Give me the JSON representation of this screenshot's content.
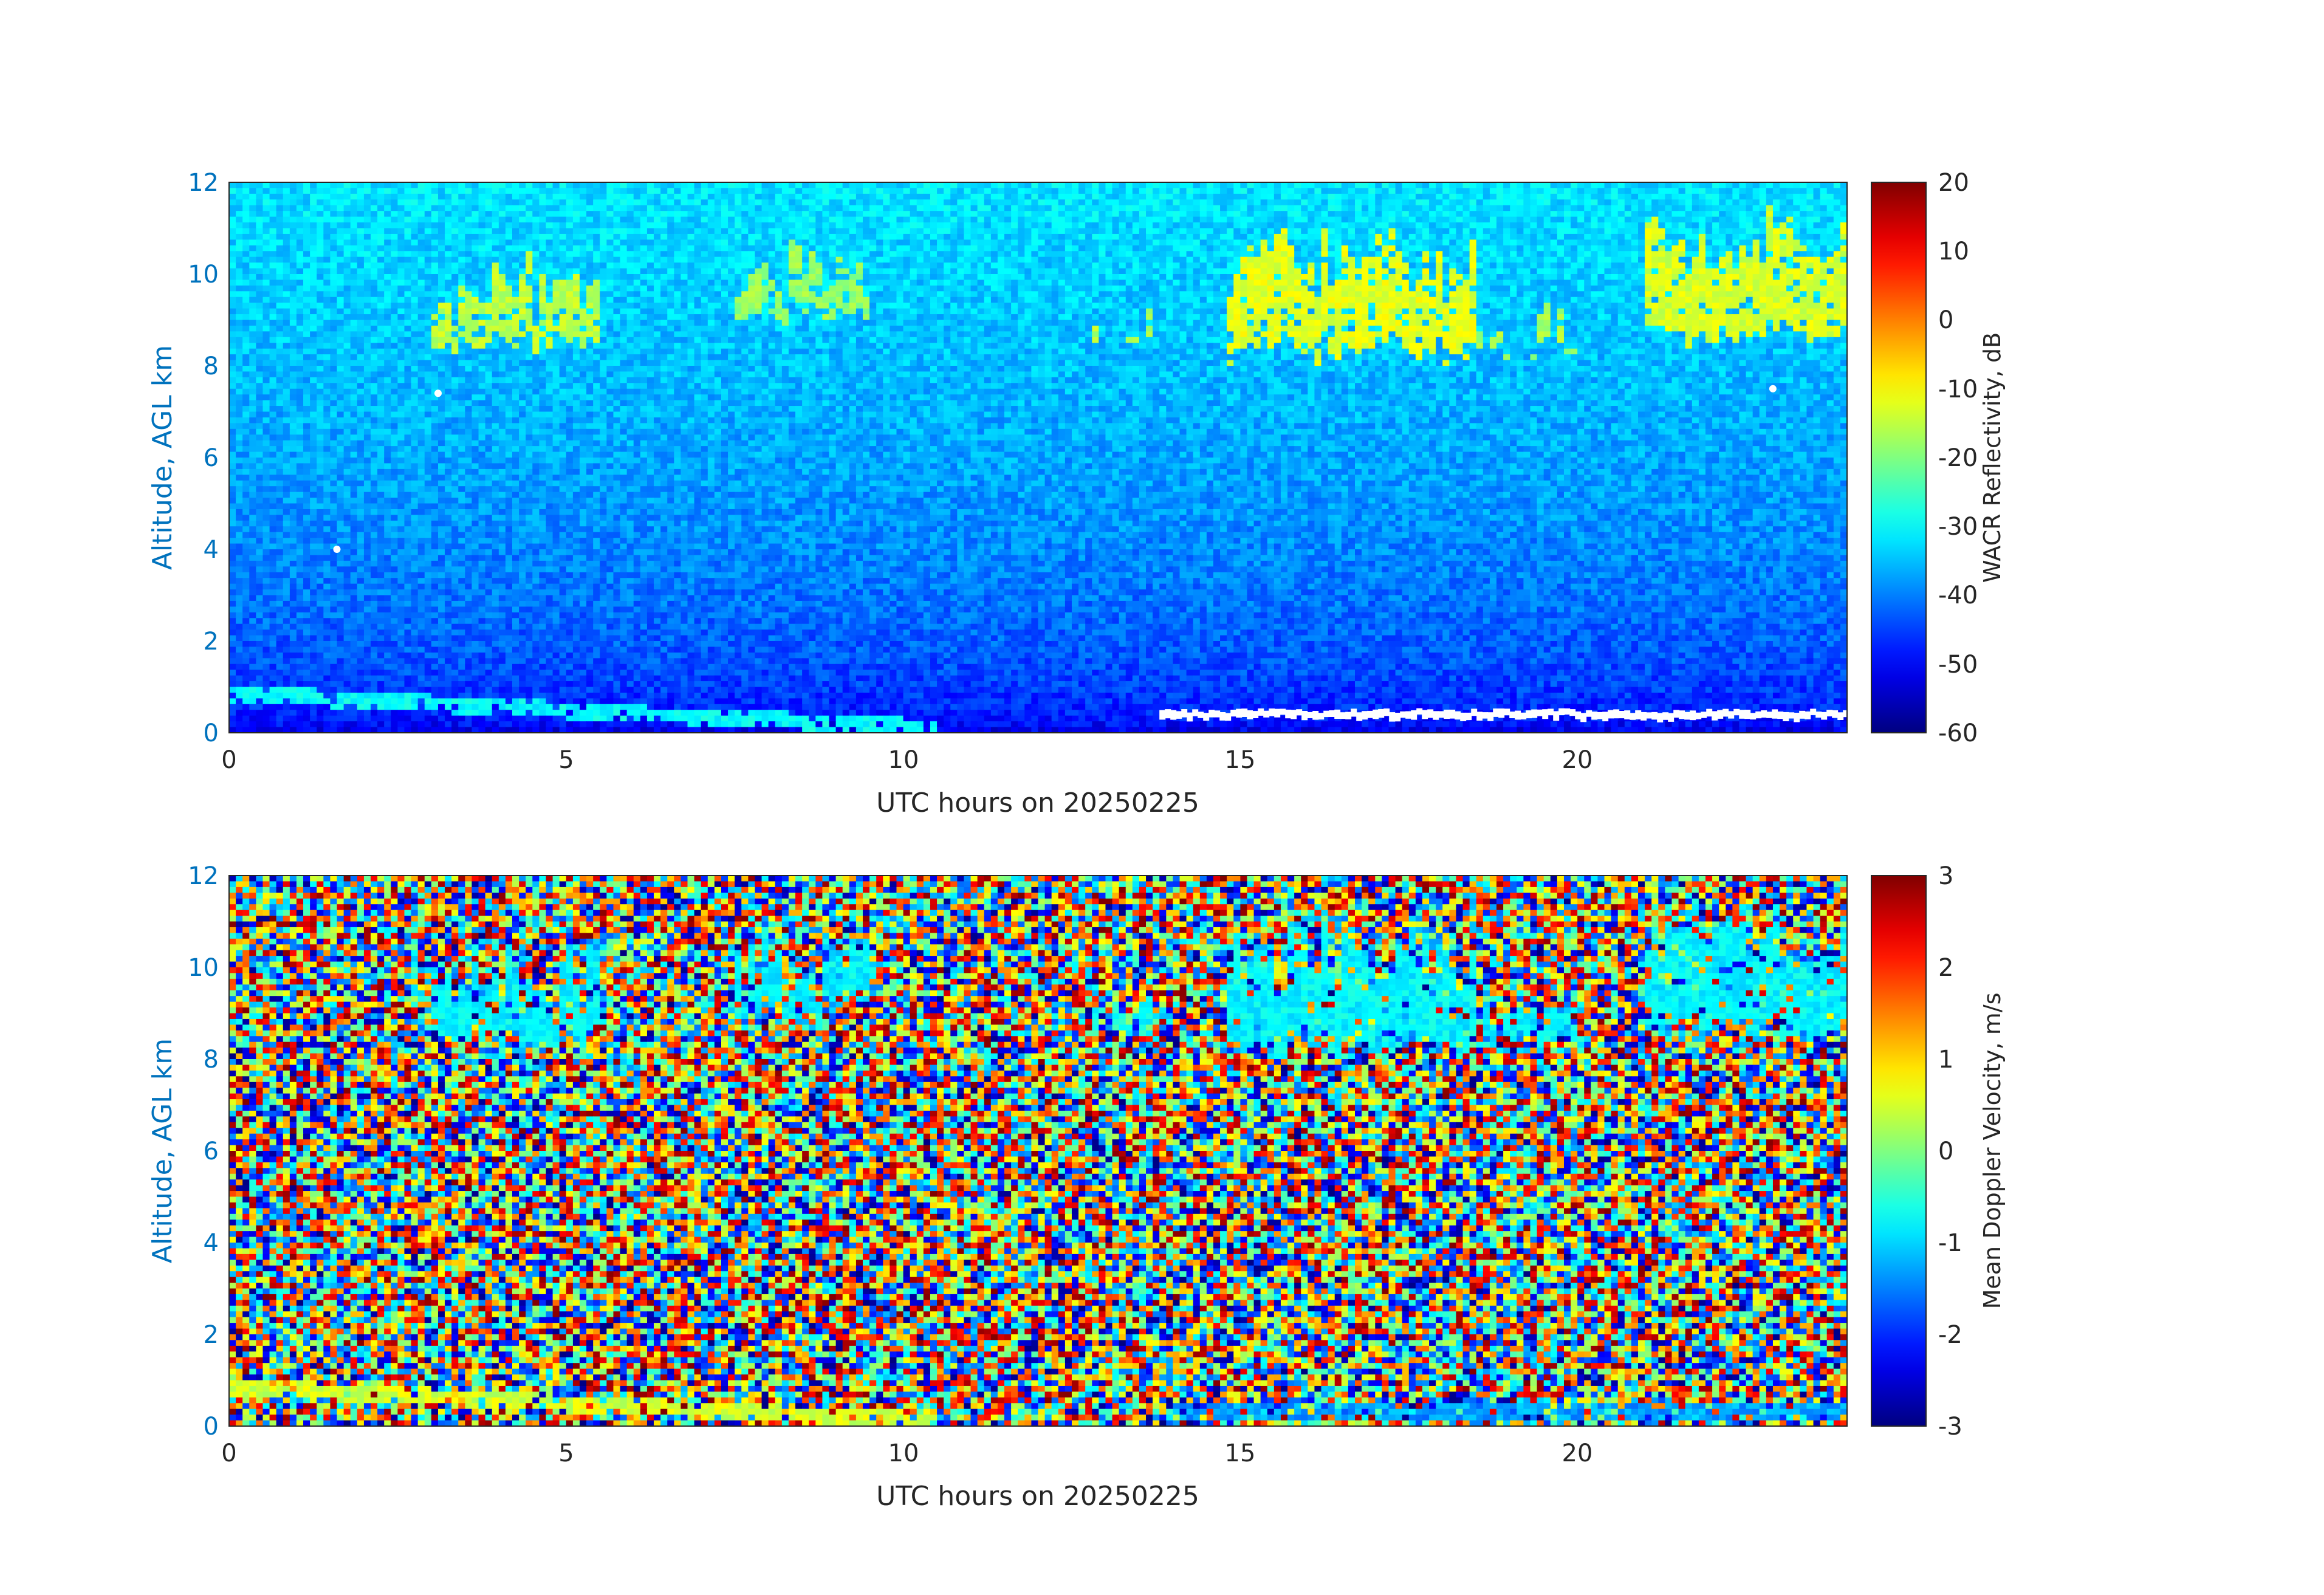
{
  "chart_data": [
    {
      "type": "heatmap",
      "title": "",
      "xlabel": "UTC hours on 20250225",
      "ylabel": "Altitude, AGL km",
      "xlim": [
        0,
        24
      ],
      "ylim": [
        0,
        12
      ],
      "xticks": [
        "0",
        "5",
        "10",
        "15",
        "20"
      ],
      "yticks": [
        "0",
        "2",
        "4",
        "6",
        "8",
        "10",
        "12"
      ],
      "colorbar": {
        "label": "WACR Reflectivity, dB",
        "range": [
          -60,
          20
        ],
        "ticks": [
          "20",
          "10",
          "0",
          "-10",
          "-20",
          "-30",
          "-40",
          "-50",
          "-60"
        ],
        "colormap": "jet"
      },
      "background": {
        "description": "noise floor increasing with altitude",
        "value_at_0km": -55,
        "value_at_12km": -32
      },
      "cloud_features": [
        {
          "x_start": 3.0,
          "x_end": 5.5,
          "alt_bottom": 8.2,
          "alt_top": 10.5,
          "dBZ": -15
        },
        {
          "x_start": 7.5,
          "x_end": 9.5,
          "alt_bottom": 8.8,
          "alt_top": 10.8,
          "dBZ": -18
        },
        {
          "x_start": 12.8,
          "x_end": 13.8,
          "alt_bottom": 8.2,
          "alt_top": 9.6,
          "dBZ": -16
        },
        {
          "x_start": 14.8,
          "x_end": 18.5,
          "alt_bottom": 8.0,
          "alt_top": 11.0,
          "dBZ": -12
        },
        {
          "x_start": 18.5,
          "x_end": 20.0,
          "alt_bottom": 8.0,
          "alt_top": 9.4,
          "dBZ": -17
        },
        {
          "x_start": 21.0,
          "x_end": 24.0,
          "alt_bottom": 8.4,
          "alt_top": 11.5,
          "dBZ": -13
        }
      ],
      "surface_layer": {
        "x_start": 0,
        "x_end": 10.5,
        "alt_start": 0.85,
        "alt_end": 0.1,
        "dBZ": -30
      },
      "missing_data": [
        {
          "x_start": 13.8,
          "x_end": 24.0,
          "alt": 0.35
        },
        {
          "x": 3.1,
          "alt": 7.4
        },
        {
          "x": 1.6,
          "alt": 4.0
        },
        {
          "x": 22.9,
          "alt": 7.5
        }
      ]
    },
    {
      "type": "heatmap",
      "title": "",
      "xlabel": "UTC hours on 20250225",
      "ylabel": "Altitude, AGL km",
      "xlim": [
        0,
        24
      ],
      "ylim": [
        0,
        12
      ],
      "xticks": [
        "0",
        "5",
        "10",
        "15",
        "20"
      ],
      "yticks": [
        "0",
        "2",
        "4",
        "6",
        "8",
        "10",
        "12"
      ],
      "colorbar": {
        "label": "Mean Doppler Velocity, m/s",
        "range": [
          -3,
          3
        ],
        "ticks": [
          "3",
          "2",
          "1",
          "0",
          "-1",
          "-2",
          "-3"
        ],
        "colormap": "jet"
      },
      "background": {
        "description": "random noise across full velocity range"
      },
      "cloud_features": [
        {
          "x_start": 3.0,
          "x_end": 5.5,
          "alt_bottom": 8.2,
          "alt_top": 10.5,
          "velocity": -0.8
        },
        {
          "x_start": 7.5,
          "x_end": 9.5,
          "alt_bottom": 8.8,
          "alt_top": 10.8,
          "velocity": -0.8
        },
        {
          "x_start": 12.8,
          "x_end": 13.8,
          "alt_bottom": 8.2,
          "alt_top": 9.6,
          "velocity": -0.7
        },
        {
          "x_start": 14.8,
          "x_end": 18.5,
          "alt_bottom": 8.0,
          "alt_top": 11.0,
          "velocity": -0.8
        },
        {
          "x_start": 18.5,
          "x_end": 20.0,
          "alt_bottom": 8.0,
          "alt_top": 9.4,
          "velocity": -0.8
        },
        {
          "x_start": 21.0,
          "x_end": 24.0,
          "alt_bottom": 8.4,
          "alt_top": 11.5,
          "velocity": -0.8
        }
      ],
      "surface_layer": {
        "x_start": 0,
        "x_end": 10.5,
        "alt_start": 0.85,
        "alt_end": 0.1,
        "velocity": 0.5
      },
      "surface_layer_2": {
        "x_start": 14.0,
        "x_end": 24.0,
        "alt": 0.3,
        "velocity": -1.3
      }
    }
  ]
}
